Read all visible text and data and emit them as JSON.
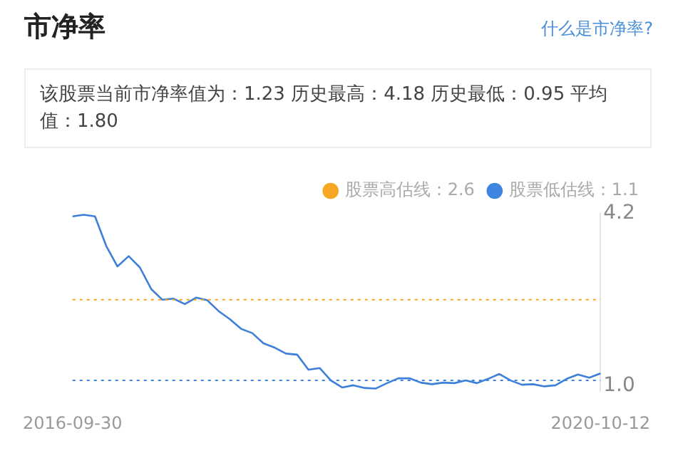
{
  "chart_data": {
    "type": "line",
    "title": "市净率",
    "subtitle": "该股票当前市净率值为：1.23 历史最高：4.18 历史最低：0.95 平均值：1.80",
    "annotations": [
      "什么是市净率?"
    ],
    "categories": [
      "2016-09-30",
      null,
      null,
      null,
      null,
      null,
      null,
      null,
      null,
      null,
      null,
      null,
      null,
      null,
      null,
      null,
      null,
      null,
      null,
      null,
      null,
      null,
      null,
      null,
      null,
      null,
      null,
      null,
      null,
      null,
      null,
      null,
      null,
      null,
      null,
      null,
      null,
      null,
      null,
      null,
      null,
      null,
      null,
      null,
      null,
      null,
      null,
      "2020-10-12"
    ],
    "series": [
      {
        "color": "#3d7fd9",
        "values": [
          4.15,
          4.18,
          4.15,
          3.6,
          3.22,
          3.41,
          3.2,
          2.8,
          2.6,
          2.62,
          2.52,
          2.64,
          2.59,
          2.39,
          2.24,
          2.06,
          1.98,
          1.79,
          1.71,
          1.6,
          1.58,
          1.3,
          1.33,
          1.1,
          0.97,
          1.01,
          0.96,
          0.95,
          1.05,
          1.14,
          1.14,
          1.06,
          1.03,
          1.06,
          1.05,
          1.1,
          1.05,
          1.13,
          1.22,
          1.1,
          1.02,
          1.03,
          0.99,
          1.01,
          1.13,
          1.21,
          1.15,
          1.23
        ]
      }
    ],
    "ylim": [
      0.9,
      4.2
    ],
    "yticks": [
      {
        "value": 1,
        "label": "1.0"
      },
      4.2
    ],
    "ref_lines": [
      {
        "axis": "y",
        "value": 2.6,
        "label": "股票高估线：2.6",
        "color": "#f5a623",
        "line_style": "dotted"
      },
      {
        "axis": "y",
        "value": 1.1,
        "label": "股票低估线：1.1",
        "color": "#3d85e0",
        "line_style": "dotted"
      }
    ],
    "legend": "top right",
    "marker": "none",
    "line_style": "solid"
  }
}
